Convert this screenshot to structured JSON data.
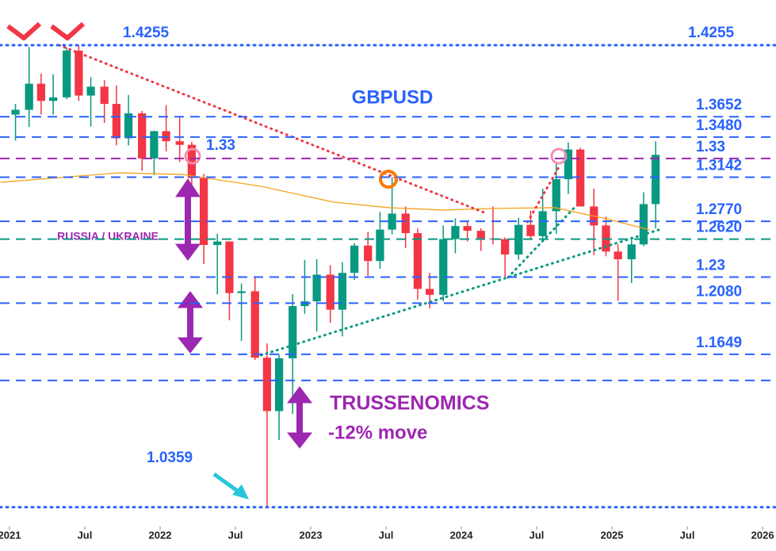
{
  "chart_data": {
    "type": "candlestick",
    "title": "GBPUSD",
    "annotations": [
      "RUSSIA / UKRAINE",
      "TRUSSENOMICS",
      "-12% move"
    ],
    "xlim": [
      2020.937,
      2026.089
    ],
    "ylim": [
      1.0224,
      1.4636
    ],
    "xticks": [
      2021,
      {
        "value": 2021.5,
        "label": "Jul"
      },
      2022,
      {
        "value": 2022.5,
        "label": "Jul"
      },
      2023,
      {
        "value": 2023.5,
        "label": "Jul"
      },
      2024,
      {
        "value": 2024.5,
        "label": "Jul"
      },
      2025,
      {
        "value": 2025.5,
        "label": "Jul"
      },
      2026
    ],
    "up_color": "#089981",
    "down_color": "#f23645",
    "candles": {
      "x": [
        2021.04,
        2021.13,
        2021.21,
        2021.29,
        2021.38,
        2021.46,
        2021.54,
        2021.63,
        2021.71,
        2021.79,
        2021.88,
        2021.96,
        2022.04,
        2022.13,
        2022.21,
        2022.29,
        2022.38,
        2022.46,
        2022.54,
        2022.63,
        2022.71,
        2022.79,
        2022.88,
        2022.96,
        2023.04,
        2023.13,
        2023.21,
        2023.29,
        2023.38,
        2023.46,
        2023.54,
        2023.63,
        2023.71,
        2023.79,
        2023.88,
        2023.96,
        2024.04,
        2024.13,
        2024.21,
        2024.29,
        2024.38,
        2024.46,
        2024.54,
        2024.63,
        2024.71,
        2024.79,
        2024.88,
        2024.96,
        2025.04,
        2025.13,
        2025.21,
        2025.29
      ],
      "open": [
        1.367,
        1.371,
        1.393,
        1.3785,
        1.3815,
        1.421,
        1.383,
        1.3905,
        1.376,
        1.347,
        1.368,
        1.33,
        1.353,
        1.3445,
        1.3415,
        1.3135,
        1.257,
        1.26,
        1.2165,
        1.218,
        1.162,
        1.117,
        1.1615,
        1.2055,
        1.2095,
        1.232,
        1.2025,
        1.2335,
        1.2565,
        1.2435,
        1.27,
        1.2835,
        1.267,
        1.22,
        1.215,
        1.262,
        1.273,
        1.269,
        1.2625,
        1.262,
        1.249,
        1.274,
        1.2645,
        1.2855,
        1.3125,
        1.3375,
        1.2895,
        1.2735,
        1.2515,
        1.245,
        1.2575,
        1.2915
      ],
      "high": [
        1.376,
        1.424,
        1.4015,
        1.401,
        1.4235,
        1.4255,
        1.3985,
        1.396,
        1.3915,
        1.3835,
        1.37,
        1.3535,
        1.375,
        1.3645,
        1.344,
        1.317,
        1.2665,
        1.26,
        1.2245,
        1.2295,
        1.174,
        1.1645,
        1.2155,
        1.2445,
        1.245,
        1.24,
        1.2425,
        1.2585,
        1.268,
        1.285,
        1.3142,
        1.2895,
        1.271,
        1.2335,
        1.2735,
        1.2795,
        1.2775,
        1.271,
        1.2895,
        1.2635,
        1.28,
        1.286,
        1.3045,
        1.3265,
        1.3435,
        1.339,
        1.3045,
        1.281,
        1.2575,
        1.264,
        1.3015,
        1.3445
      ],
      "low": [
        1.345,
        1.3565,
        1.367,
        1.367,
        1.38,
        1.3785,
        1.357,
        1.36,
        1.341,
        1.341,
        1.3195,
        1.316,
        1.336,
        1.327,
        1.3,
        1.241,
        1.2155,
        1.1935,
        1.176,
        1.16,
        1.0359,
        1.0925,
        1.1145,
        1.199,
        1.184,
        1.1915,
        1.18,
        1.2275,
        1.231,
        1.237,
        1.266,
        1.2545,
        1.211,
        1.2035,
        1.2095,
        1.25,
        1.26,
        1.252,
        1.2575,
        1.23,
        1.2445,
        1.2615,
        1.2615,
        1.2665,
        1.3,
        1.2905,
        1.2485,
        1.2475,
        1.21,
        1.225,
        1.256,
        1.271
      ],
      "close": [
        1.371,
        1.393,
        1.3785,
        1.3815,
        1.421,
        1.383,
        1.3905,
        1.376,
        1.347,
        1.368,
        1.33,
        1.353,
        1.3445,
        1.3415,
        1.3135,
        1.257,
        1.26,
        1.2165,
        1.218,
        1.162,
        1.117,
        1.1615,
        1.2055,
        1.2095,
        1.232,
        1.2025,
        1.2335,
        1.2565,
        1.2435,
        1.27,
        1.2835,
        1.267,
        1.22,
        1.215,
        1.262,
        1.273,
        1.269,
        1.2625,
        1.262,
        1.249,
        1.274,
        1.2645,
        1.2855,
        1.3125,
        1.3375,
        1.2895,
        1.2735,
        1.2515,
        1.245,
        1.2575,
        1.2915,
        1.333
      ]
    },
    "series": [
      {
        "color": "#f7a21b",
        "x": [
          2020.94,
          2021.73,
          2022.15,
          2022.67,
          2023.15,
          2023.52,
          2023.88,
          2024.2,
          2024.62,
          2024.94,
          2025.25
        ],
        "values": [
          1.3099,
          1.3179,
          1.3165,
          1.3065,
          1.2932,
          1.2885,
          1.2865,
          1.2878,
          1.2885,
          1.2798,
          1.2698
        ]
      }
    ],
    "levels": [
      {
        "value": 1.4255,
        "label": "1.4255",
        "color": "#2962ff",
        "style": "dotted"
      },
      {
        "value": 1.3652,
        "label": "1.3652",
        "color": "#2962ff",
        "style": "dashed"
      },
      {
        "value": 1.348,
        "label": "1.3480",
        "color": "#2962ff",
        "style": "dashed"
      },
      {
        "value": 1.33,
        "label": "1.33",
        "color": "#9c27b0",
        "style": "dashed"
      },
      {
        "value": 1.3142,
        "label": "1.3142",
        "color": "#2962ff",
        "style": "dashed"
      },
      {
        "value": 1.277,
        "label": "1.2770",
        "color": "#2962ff",
        "style": "dashed"
      },
      {
        "value": 1.262,
        "label": "1.2620",
        "color": "#089981",
        "style": "dashed"
      },
      {
        "value": 1.23,
        "label": "1.23",
        "color": "#2962ff",
        "style": "dashed"
      },
      {
        "value": 1.208,
        "label": "1.2080",
        "color": "#2962ff",
        "style": "dashed"
      },
      {
        "value": 1.1649,
        "label": "1.1649",
        "color": "#2962ff",
        "style": "dashed"
      },
      {
        "value": 1.1428,
        "color": "#2962ff",
        "style": "dashed"
      },
      {
        "value": 1.0359,
        "label": "1.0359",
        "color": "#2962ff",
        "style": "dotted"
      }
    ],
    "trendlines": [
      {
        "color": "#f23645",
        "points": [
          [
            2021.33,
            1.4255
          ],
          [
            2024.15,
            1.2845
          ]
        ]
      },
      {
        "color": "#f23645",
        "points": [
          [
            2024.44,
            1.2764
          ],
          [
            2024.65,
            1.3232
          ]
        ]
      },
      {
        "color": "#089981",
        "points": [
          [
            2022.67,
            1.1641
          ],
          [
            2025.31,
            1.2698
          ]
        ]
      },
      {
        "color": "#089981",
        "points": [
          [
            2024.31,
            1.2297
          ],
          [
            2024.75,
            1.2885
          ]
        ]
      }
    ]
  }
}
